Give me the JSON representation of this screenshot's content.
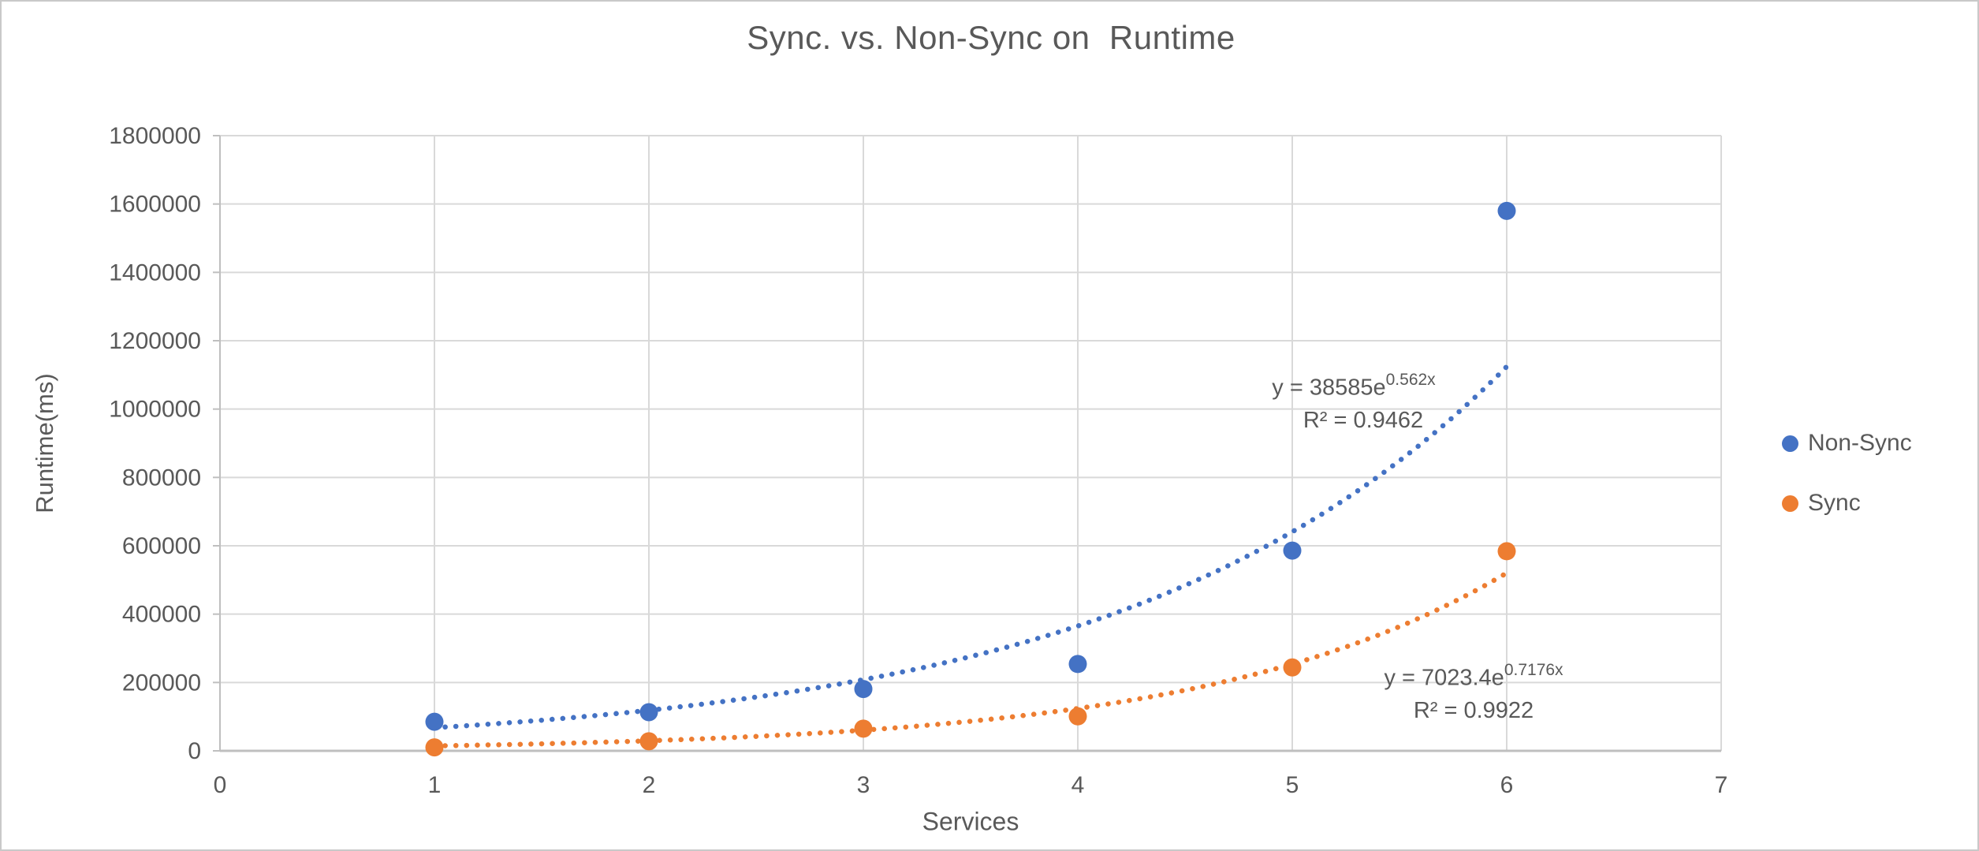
{
  "chart_data": {
    "type": "scatter",
    "title": "Sync. vs. Non-Sync on  Runtime",
    "xlabel": "Services",
    "ylabel": "Runtime(ms)",
    "xlim": [
      0,
      7
    ],
    "ylim": [
      0,
      1800000
    ],
    "x_ticks": [
      0,
      1,
      2,
      3,
      4,
      5,
      6,
      7
    ],
    "y_ticks": [
      0,
      200000,
      400000,
      600000,
      800000,
      1000000,
      1200000,
      1400000,
      1600000,
      1800000
    ],
    "grid": true,
    "legend_position": "right",
    "colors": {
      "grid": "#D9D9D9",
      "axis": "#BFBFBF",
      "text": "#595959",
      "background": "#FFFFFF"
    },
    "series": [
      {
        "name": "Non-Sync",
        "color": "#4472C4",
        "x": [
          1,
          2,
          3,
          4,
          5,
          6
        ],
        "y": [
          85000,
          113000,
          181000,
          254000,
          586000,
          1580000
        ],
        "trendline": {
          "type": "exponential",
          "a": 38585,
          "b": 0.562,
          "x_start": 1,
          "x_end": 6.02,
          "equation": "y = 38585e",
          "exponent": "0.562x",
          "r2": "R² = 0.9462"
        }
      },
      {
        "name": "Sync",
        "color": "#ED7D31",
        "x": [
          1,
          2,
          3,
          4,
          5,
          6
        ],
        "y": [
          10000,
          28000,
          65000,
          101000,
          244000,
          584000
        ],
        "trendline": {
          "type": "exponential",
          "a": 7023.4,
          "b": 0.7176,
          "x_start": 1,
          "x_end": 6.0,
          "equation": "y = 7023.4e",
          "exponent": "0.7176x",
          "r2": "R² = 0.9922"
        }
      }
    ]
  }
}
